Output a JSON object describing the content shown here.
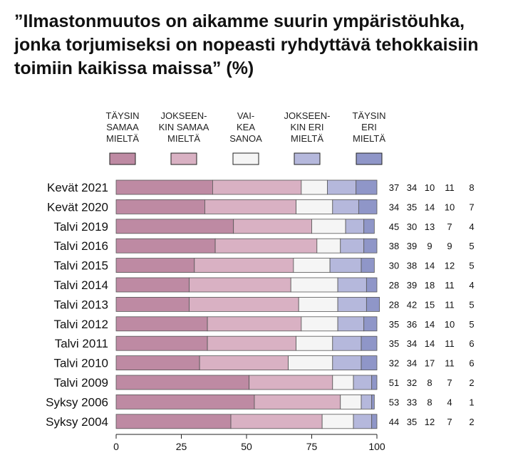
{
  "title_lines": [
    "”Ilmastonmuutos on aikamme suurin ympäristöuhka,",
    "jonka torjumiseksi on nopeasti ryhdyttävä tehokkaisiin",
    "toimiin kaikissa maissa” (%)"
  ],
  "chart_data": {
    "type": "bar",
    "orientation": "horizontal",
    "stacked": true,
    "title": "”Ilmastonmuutos on aikamme suurin ympäristöuhka, jonka torjumiseksi on nopeasti ryhdyttävä tehokkaisiin toimiin kaikissa maissa” (%)",
    "xlim": [
      0,
      100
    ],
    "x_ticks": [
      0,
      25,
      50,
      75,
      100
    ],
    "legend_position": "top",
    "grid": false,
    "categories": [
      "Kevät 2021",
      "Kevät 2020",
      "Talvi 2019",
      "Talvi 2016",
      "Talvi 2015",
      "Talvi 2014",
      "Talvi 2013",
      "Talvi 2012",
      "Talvi 2011",
      "Talvi 2010",
      "Talvi 2009",
      "Syksy 2006",
      "Syksy 2004"
    ],
    "series": [
      {
        "name": "TÄYSIN SAMAA MIELTÄ",
        "legend_lines": [
          "TÄYSIN",
          "SAMAA",
          "MIELTÄ"
        ],
        "color": "#be8aa3",
        "values": [
          37,
          34,
          45,
          38,
          30,
          28,
          28,
          35,
          35,
          32,
          51,
          53,
          44
        ]
      },
      {
        "name": "JOKSEENKIN SAMAA MIELTÄ",
        "legend_lines": [
          "JOKSEEN-",
          "KIN SAMAA",
          "MIELTÄ"
        ],
        "color": "#d9b1c3",
        "values": [
          34,
          35,
          30,
          39,
          38,
          39,
          42,
          36,
          34,
          34,
          32,
          33,
          35
        ]
      },
      {
        "name": "VAIKEA SANOA",
        "legend_lines": [
          "VAI-",
          "KEA",
          "SANOA"
        ],
        "color": "#f5f5f5",
        "values": [
          10,
          14,
          13,
          9,
          14,
          18,
          15,
          14,
          14,
          17,
          8,
          8,
          12
        ]
      },
      {
        "name": "JOKSEENKIN ERI MIELTÄ",
        "legend_lines": [
          "JOKSEEN-",
          "KIN ERI",
          "MIELTÄ"
        ],
        "color": "#b5b8dc",
        "values": [
          11,
          10,
          7,
          9,
          12,
          11,
          11,
          10,
          11,
          11,
          7,
          4,
          7
        ]
      },
      {
        "name": "TÄYSIN ERI MIELTÄ",
        "legend_lines": [
          "TÄYSIN",
          "ERI",
          "MIELTÄ"
        ],
        "color": "#8f96c8",
        "values": [
          8,
          7,
          4,
          5,
          5,
          4,
          5,
          5,
          6,
          6,
          2,
          1,
          2
        ]
      }
    ]
  }
}
